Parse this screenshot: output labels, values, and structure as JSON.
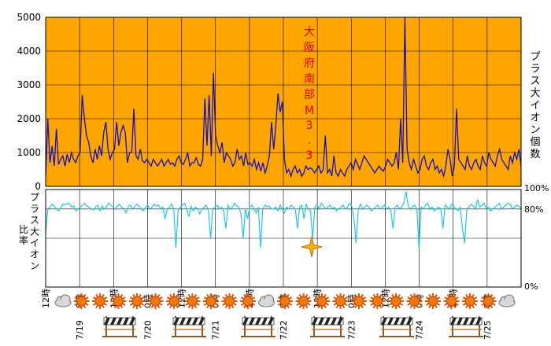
{
  "chart_data": [
    {
      "type": "line",
      "title": "",
      "ylabel": "プラス大イオン個数",
      "ylim": [
        0,
        5000
      ],
      "y_ticks": [
        "0",
        "1000",
        "2000",
        "3000",
        "4000",
        "5000"
      ],
      "background": "#FFA500",
      "line_color": "#1010C0",
      "grid": true,
      "annotation": "大阪府南部 M3.3",
      "x_start": "7/18 12時",
      "x_end": "7/25 24時",
      "series": [
        {
          "values": [
            300,
            2000,
            700,
            1200,
            600,
            1700,
            650,
            800,
            900,
            600,
            950,
            700,
            1000,
            800,
            700,
            900,
            1000,
            2700,
            2000,
            1500,
            1300,
            900,
            700,
            1100,
            800,
            1200,
            900,
            1600,
            1900,
            1100,
            800,
            1000,
            1100,
            1900,
            1200,
            1600,
            1800,
            1600,
            700,
            1000,
            1000,
            2300,
            900,
            800,
            1100,
            750,
            700,
            800,
            700,
            600,
            800,
            700,
            600,
            700,
            800,
            600,
            700,
            800,
            650,
            700,
            600,
            800,
            900,
            700,
            650,
            800,
            1000,
            600,
            700,
            700,
            850,
            650,
            600,
            800,
            2600,
            1200,
            2700,
            900,
            3350,
            1500,
            1200,
            1000,
            1300,
            700,
            1000,
            900,
            800,
            600,
            700,
            1100,
            800,
            900,
            600,
            1000,
            650,
            700,
            600,
            800,
            500,
            700,
            450,
            700,
            400,
            600,
            900,
            1900,
            1100,
            1800,
            2750,
            2200,
            2500,
            800,
            400,
            500,
            300,
            500,
            600,
            400,
            500,
            300,
            400,
            600,
            500,
            550,
            500,
            400,
            500,
            600,
            400,
            500,
            1500,
            400,
            500,
            300,
            900,
            400,
            300,
            500,
            400,
            300,
            500,
            600,
            700,
            500,
            800,
            650,
            500,
            700,
            900,
            800,
            700,
            600,
            500,
            400,
            500,
            600,
            500,
            450,
            600,
            800,
            700,
            600,
            700,
            1000,
            500,
            2000,
            700,
            5000,
            1100,
            700,
            500,
            800,
            600,
            400,
            500,
            800,
            900,
            600,
            500,
            700,
            800,
            500,
            600,
            400,
            500,
            300,
            600,
            1100,
            800,
            300,
            600,
            2300,
            800,
            700,
            600,
            500,
            900,
            600,
            500,
            700,
            800,
            600,
            500,
            900,
            700,
            600,
            1000,
            800,
            700,
            600,
            900,
            1100,
            800,
            700,
            600,
            500,
            900,
            700,
            1000,
            800,
            1100,
            600
          ]
        }
      ]
    },
    {
      "type": "line",
      "ylabel": "プラス大イオン比率",
      "ylim": [
        0,
        100
      ],
      "y_ticks": [
        "0%",
        "80%",
        "100%"
      ],
      "line_color": "#20C8E8",
      "annotation_marker": "star",
      "series": [
        {
          "values": [
            55,
            80,
            82,
            85,
            83,
            80,
            78,
            82,
            85,
            84,
            86,
            85,
            82,
            83,
            78,
            80,
            82,
            84,
            86,
            83,
            82,
            80,
            79,
            82,
            84,
            78,
            83,
            80,
            82,
            86,
            84,
            82,
            80,
            83,
            85,
            82,
            80,
            76,
            82,
            84,
            80,
            82,
            85,
            83,
            80,
            78,
            82,
            84,
            80,
            82,
            85,
            83,
            84,
            80,
            82,
            70,
            80,
            82,
            85,
            80,
            40,
            78,
            82,
            84,
            86,
            80,
            72,
            83,
            78,
            82,
            80,
            75,
            80,
            82,
            84,
            78,
            50,
            80,
            82,
            84,
            80,
            82,
            78,
            60,
            84,
            80,
            82,
            86,
            83,
            82,
            75,
            50,
            80,
            70,
            82,
            84,
            80,
            76,
            82,
            40,
            80,
            84,
            82,
            83,
            80,
            80,
            82,
            78,
            84,
            80,
            76,
            82,
            80,
            84,
            82,
            80,
            60,
            82,
            84,
            70,
            85,
            80,
            78,
            50,
            82,
            84,
            80,
            86,
            83,
            80,
            82,
            84,
            80,
            82,
            78,
            80,
            82,
            84,
            80,
            82,
            86,
            83,
            70,
            45,
            80,
            85,
            80,
            82,
            84,
            82,
            78,
            80,
            82,
            84,
            80,
            82,
            84,
            80,
            82,
            78,
            60,
            82,
            84,
            80,
            82,
            86,
            98,
            83,
            80,
            82,
            84,
            80,
            38,
            82,
            80,
            84,
            86,
            80,
            82,
            78,
            80,
            82,
            80,
            60,
            84,
            82,
            80,
            85,
            83,
            80,
            78,
            82,
            60,
            45,
            80,
            82,
            85,
            83,
            80,
            90,
            82,
            84,
            86,
            80,
            82,
            78,
            80,
            82,
            84,
            86,
            80,
            82,
            84,
            86,
            85,
            80,
            82,
            84,
            83,
            80
          ]
        }
      ]
    }
  ],
  "x_axis": {
    "labels": [
      {
        "text": "12時",
        "sub": ""
      },
      {
        "text": "0時",
        "sub": "7/19"
      },
      {
        "text": "12時",
        "sub": ""
      },
      {
        "text": "0時",
        "sub": "7/20"
      },
      {
        "text": "12時",
        "sub": ""
      },
      {
        "text": "0時",
        "sub": "7/21"
      },
      {
        "text": "12時",
        "sub": ""
      },
      {
        "text": "0時",
        "sub": "7/22"
      },
      {
        "text": "12時",
        "sub": ""
      },
      {
        "text": "0時",
        "sub": "7/23"
      },
      {
        "text": "12時",
        "sub": ""
      },
      {
        "text": "0時",
        "sub": "7/24"
      },
      {
        "text": "12時",
        "sub": ""
      },
      {
        "text": "0時",
        "sub": "7/25"
      }
    ]
  },
  "weather": {
    "icons": [
      "cloud-icon",
      "sun-icon",
      "sun-icon",
      "sun-icon",
      "sun-icon",
      "sun-icon",
      "sun-icon",
      "sun-icon",
      "sun-icon",
      "sun-icon",
      "sun-icon",
      "cloud-icon",
      "sun-icon",
      "sun-icon",
      "sun-icon",
      "sun-icon",
      "sun-icon",
      "sun-icon",
      "sun-icon",
      "sun-icon",
      "sun-icon",
      "sun-icon",
      "sun-icon",
      "sun-icon",
      "cloud-icon"
    ],
    "barrier_icons": [
      "barrier-icon",
      "barrier-icon",
      "barrier-icon",
      "barrier-icon",
      "barrier-icon",
      "barrier-icon"
    ]
  }
}
